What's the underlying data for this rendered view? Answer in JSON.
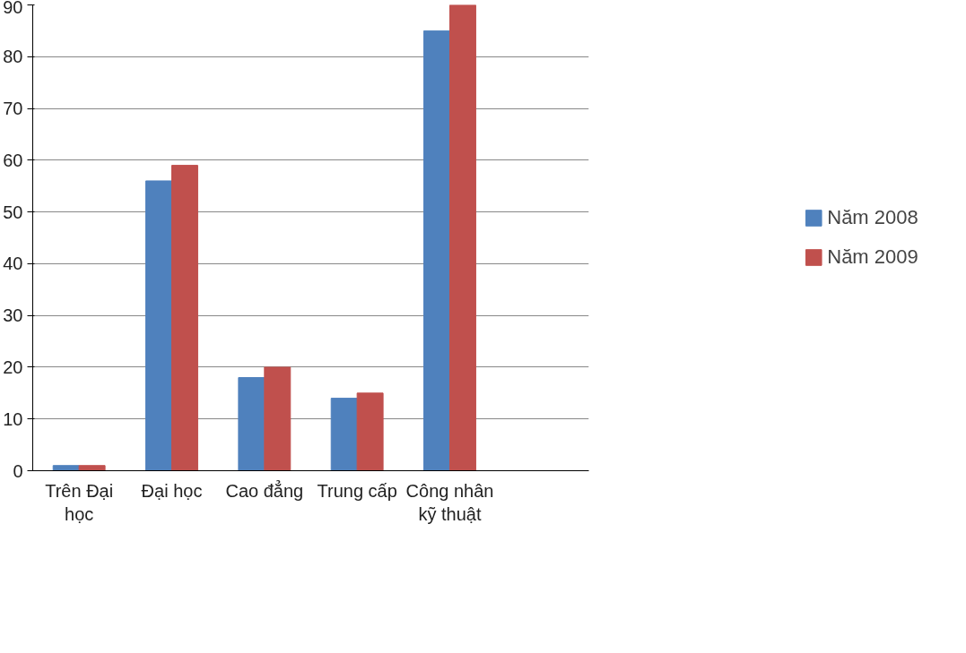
{
  "chart_data": {
    "type": "bar",
    "categories": [
      "Trên Đại học",
      "Đại học",
      "Cao đẳng",
      "Trung cấp",
      "Công nhân kỹ thuật",
      null
    ],
    "series": [
      {
        "name": "Năm 2008",
        "color": "#4f81bd",
        "values": [
          1,
          56,
          18,
          14,
          85,
          null
        ]
      },
      {
        "name": "Năm 2009",
        "color": "#c0504d",
        "values": [
          1,
          59,
          20,
          15,
          90,
          null
        ]
      }
    ],
    "ylim": [
      0,
      90
    ],
    "yticks": [
      0,
      10,
      20,
      30,
      40,
      50,
      60,
      70,
      80,
      90
    ],
    "grid": "y",
    "legend": "right"
  }
}
